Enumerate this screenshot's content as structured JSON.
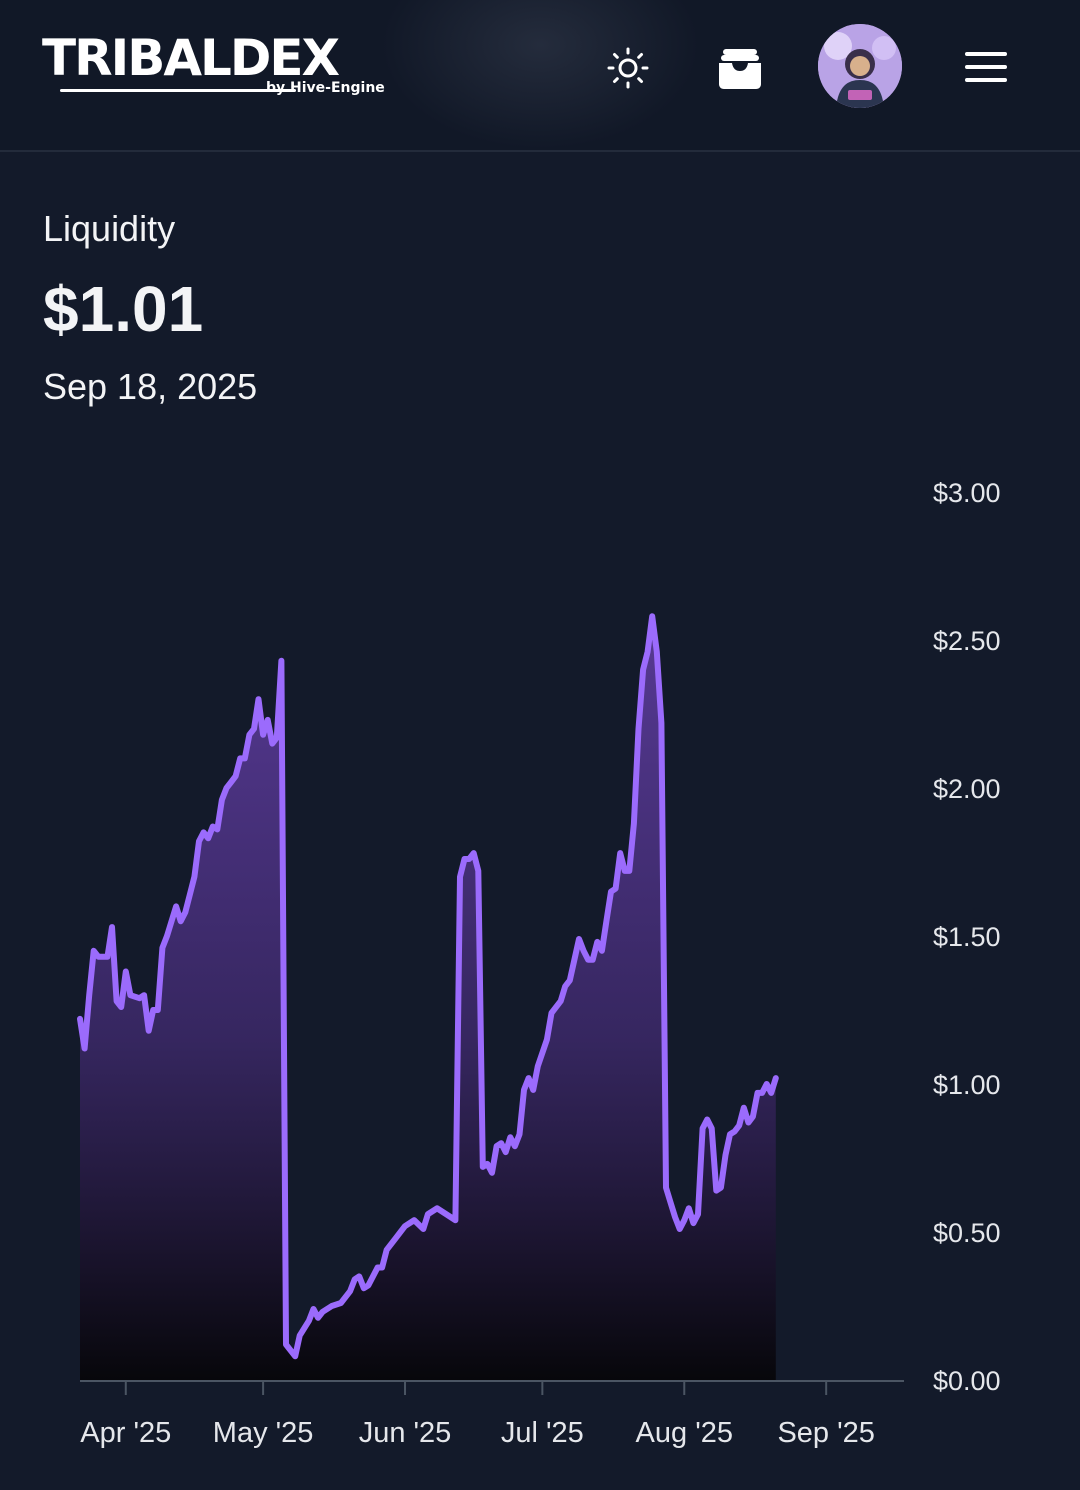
{
  "header": {
    "logo_text": "TRIBALDEX",
    "logo_sub": "by Hive-Engine"
  },
  "icons": {
    "theme": "sun-icon",
    "wallet": "wallet-icon",
    "avatar": "avatar",
    "menu": "hamburger-menu-icon"
  },
  "summary": {
    "label": "Liquidity",
    "value": "$1.01",
    "date": "Sep 18, 2025"
  },
  "colors": {
    "background": "#131a2a",
    "header_bg": "#111827",
    "line": "#9b6bfc",
    "fill_top": "#5b3b9a",
    "text": "#f3f4f6"
  },
  "chart_data": {
    "type": "area",
    "title": "",
    "xlabel": "",
    "ylabel": "",
    "x_range": [
      "2025-03-22",
      "2025-09-18"
    ],
    "ylim": [
      0,
      3
    ],
    "y_ticks": [
      "$3.00",
      "$2.50",
      "$2.00",
      "$1.50",
      "$1.00",
      "$0.50",
      "$0.00"
    ],
    "x_ticks": [
      {
        "label": "Apr '25",
        "date": "2025-04-01"
      },
      {
        "label": "May '25",
        "date": "2025-05-01"
      },
      {
        "label": "Jun '25",
        "date": "2025-06-01"
      },
      {
        "label": "Jul '25",
        "date": "2025-07-01"
      },
      {
        "label": "Aug '25",
        "date": "2025-08-01"
      },
      {
        "label": "Sep '25",
        "date": "2025-09-01"
      }
    ],
    "grid": false,
    "legend": "none",
    "series": [
      {
        "points": [
          [
            "2025-03-22",
            1.22
          ],
          [
            "2025-03-23",
            1.12
          ],
          [
            "2025-03-24",
            1.3
          ],
          [
            "2025-03-25",
            1.45
          ],
          [
            "2025-03-26",
            1.43
          ],
          [
            "2025-03-28",
            1.43
          ],
          [
            "2025-03-29",
            1.53
          ],
          [
            "2025-03-30",
            1.28
          ],
          [
            "2025-03-31",
            1.26
          ],
          [
            "2025-04-01",
            1.38
          ],
          [
            "2025-04-02",
            1.3
          ],
          [
            "2025-04-04",
            1.29
          ],
          [
            "2025-04-05",
            1.3
          ],
          [
            "2025-04-06",
            1.18
          ],
          [
            "2025-04-07",
            1.25
          ],
          [
            "2025-04-08",
            1.25
          ],
          [
            "2025-04-09",
            1.46
          ],
          [
            "2025-04-10",
            1.5
          ],
          [
            "2025-04-12",
            1.6
          ],
          [
            "2025-04-13",
            1.55
          ],
          [
            "2025-04-14",
            1.58
          ],
          [
            "2025-04-16",
            1.7
          ],
          [
            "2025-04-17",
            1.82
          ],
          [
            "2025-04-18",
            1.85
          ],
          [
            "2025-04-19",
            1.83
          ],
          [
            "2025-04-20",
            1.87
          ],
          [
            "2025-04-21",
            1.86
          ],
          [
            "2025-04-22",
            1.96
          ],
          [
            "2025-04-23",
            2.0
          ],
          [
            "2025-04-24",
            2.02
          ],
          [
            "2025-04-25",
            2.04
          ],
          [
            "2025-04-26",
            2.1
          ],
          [
            "2025-04-27",
            2.1
          ],
          [
            "2025-04-28",
            2.18
          ],
          [
            "2025-04-29",
            2.2
          ],
          [
            "2025-04-30",
            2.3
          ],
          [
            "2025-05-01",
            2.18
          ],
          [
            "2025-05-02",
            2.23
          ],
          [
            "2025-05-03",
            2.15
          ],
          [
            "2025-05-04",
            2.17
          ],
          [
            "2025-05-05",
            2.43
          ],
          [
            "2025-05-06",
            0.12
          ],
          [
            "2025-05-07",
            0.1
          ],
          [
            "2025-05-08",
            0.08
          ],
          [
            "2025-05-09",
            0.15
          ],
          [
            "2025-05-11",
            0.2
          ],
          [
            "2025-05-12",
            0.24
          ],
          [
            "2025-05-13",
            0.21
          ],
          [
            "2025-05-14",
            0.23
          ],
          [
            "2025-05-16",
            0.25
          ],
          [
            "2025-05-18",
            0.26
          ],
          [
            "2025-05-20",
            0.3
          ],
          [
            "2025-05-21",
            0.34
          ],
          [
            "2025-05-22",
            0.35
          ],
          [
            "2025-05-23",
            0.31
          ],
          [
            "2025-05-24",
            0.32
          ],
          [
            "2025-05-26",
            0.38
          ],
          [
            "2025-05-27",
            0.38
          ],
          [
            "2025-05-28",
            0.44
          ],
          [
            "2025-05-30",
            0.48
          ],
          [
            "2025-06-01",
            0.52
          ],
          [
            "2025-06-03",
            0.54
          ],
          [
            "2025-06-05",
            0.51
          ],
          [
            "2025-06-06",
            0.56
          ],
          [
            "2025-06-08",
            0.58
          ],
          [
            "2025-06-10",
            0.56
          ],
          [
            "2025-06-12",
            0.54
          ],
          [
            "2025-06-13",
            1.7
          ],
          [
            "2025-06-14",
            1.76
          ],
          [
            "2025-06-15",
            1.76
          ],
          [
            "2025-06-16",
            1.78
          ],
          [
            "2025-06-17",
            1.72
          ],
          [
            "2025-06-18",
            0.72
          ],
          [
            "2025-06-19",
            0.73
          ],
          [
            "2025-06-20",
            0.7
          ],
          [
            "2025-06-21",
            0.79
          ],
          [
            "2025-06-22",
            0.8
          ],
          [
            "2025-06-23",
            0.77
          ],
          [
            "2025-06-24",
            0.82
          ],
          [
            "2025-06-25",
            0.79
          ],
          [
            "2025-06-26",
            0.83
          ],
          [
            "2025-06-27",
            0.98
          ],
          [
            "2025-06-28",
            1.02
          ],
          [
            "2025-06-29",
            0.98
          ],
          [
            "2025-06-30",
            1.06
          ],
          [
            "2025-07-02",
            1.15
          ],
          [
            "2025-07-03",
            1.24
          ],
          [
            "2025-07-05",
            1.28
          ],
          [
            "2025-07-06",
            1.33
          ],
          [
            "2025-07-07",
            1.35
          ],
          [
            "2025-07-08",
            1.42
          ],
          [
            "2025-07-09",
            1.49
          ],
          [
            "2025-07-10",
            1.45
          ],
          [
            "2025-07-11",
            1.42
          ],
          [
            "2025-07-12",
            1.42
          ],
          [
            "2025-07-13",
            1.48
          ],
          [
            "2025-07-14",
            1.45
          ],
          [
            "2025-07-15",
            1.55
          ],
          [
            "2025-07-16",
            1.65
          ],
          [
            "2025-07-17",
            1.66
          ],
          [
            "2025-07-18",
            1.78
          ],
          [
            "2025-07-19",
            1.72
          ],
          [
            "2025-07-20",
            1.72
          ],
          [
            "2025-07-21",
            1.88
          ],
          [
            "2025-07-22",
            2.2
          ],
          [
            "2025-07-23",
            2.4
          ],
          [
            "2025-07-24",
            2.46
          ],
          [
            "2025-07-25",
            2.58
          ],
          [
            "2025-07-26",
            2.46
          ],
          [
            "2025-07-27",
            2.22
          ],
          [
            "2025-07-28",
            0.65
          ],
          [
            "2025-07-29",
            0.6
          ],
          [
            "2025-07-30",
            0.55
          ],
          [
            "2025-07-31",
            0.51
          ],
          [
            "2025-08-01",
            0.54
          ],
          [
            "2025-08-02",
            0.58
          ],
          [
            "2025-08-03",
            0.53
          ],
          [
            "2025-08-04",
            0.56
          ],
          [
            "2025-08-05",
            0.85
          ],
          [
            "2025-08-06",
            0.88
          ],
          [
            "2025-08-07",
            0.85
          ],
          [
            "2025-08-08",
            0.64
          ],
          [
            "2025-08-09",
            0.65
          ],
          [
            "2025-08-10",
            0.76
          ],
          [
            "2025-08-11",
            0.83
          ],
          [
            "2025-08-12",
            0.84
          ],
          [
            "2025-08-13",
            0.86
          ],
          [
            "2025-08-14",
            0.92
          ],
          [
            "2025-08-15",
            0.87
          ],
          [
            "2025-08-16",
            0.89
          ],
          [
            "2025-08-17",
            0.97
          ],
          [
            "2025-08-18",
            0.97
          ],
          [
            "2025-08-19",
            1.0
          ],
          [
            "2025-08-20",
            0.97
          ],
          [
            "2025-08-21",
            1.02
          ]
        ]
      }
    ]
  }
}
